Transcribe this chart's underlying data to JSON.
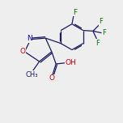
{
  "background_color": "#eeeeee",
  "line_color": "#1a1a5e",
  "atom_colors": {
    "O": "#cc0000",
    "N": "#0000cc",
    "F": "#007700",
    "C": "#1a1a5e"
  },
  "font_size": 6.5,
  "line_width": 0.9,
  "xlim": [
    0,
    10
  ],
  "ylim": [
    0,
    10
  ]
}
